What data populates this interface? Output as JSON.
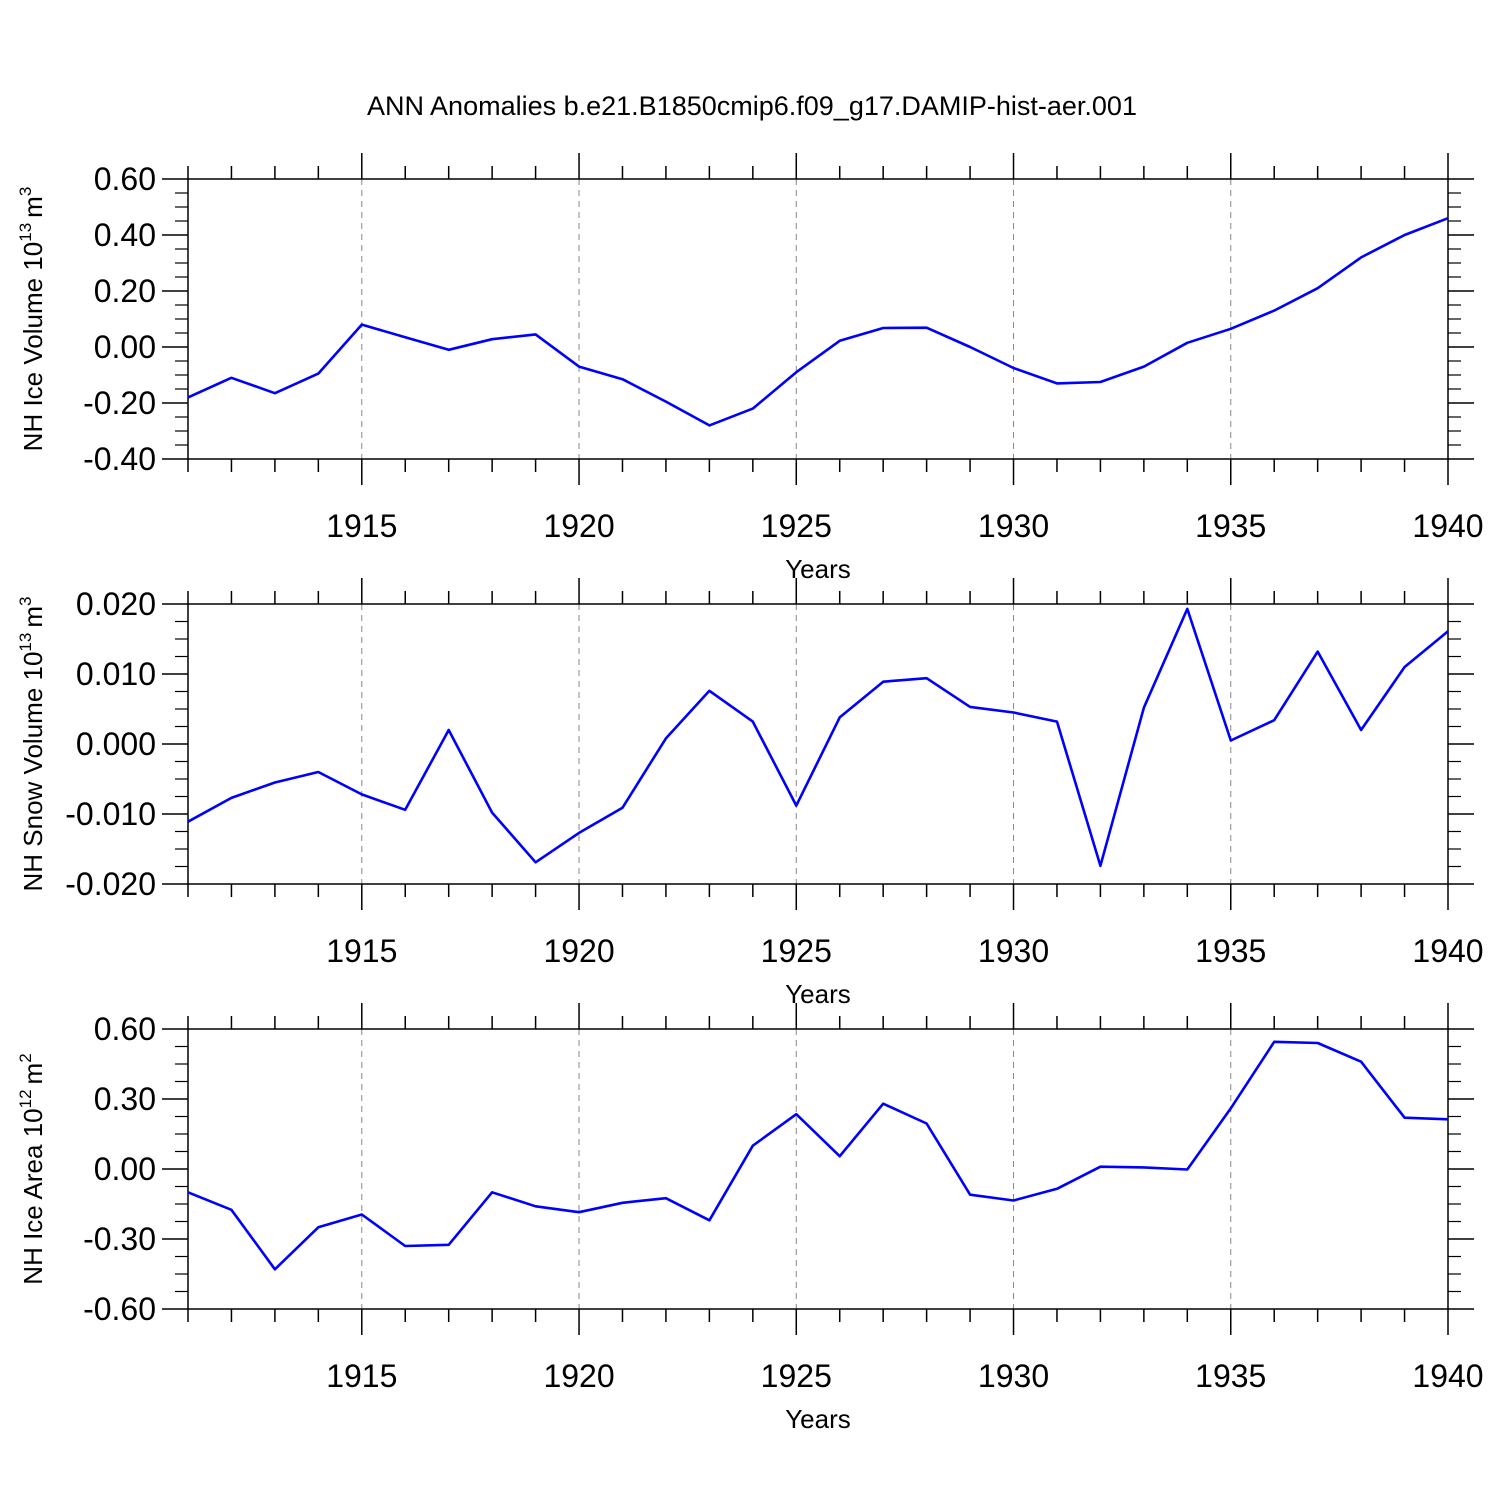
{
  "chart_data": [
    {
      "type": "line",
      "title": "ANN Anomalies b.e21.B1850cmip6.f09_g17.DAMIP-hist-aer.001",
      "xlabel": "Years",
      "ylabel": "NH Ice Volume 10",
      "ylabel_exp": "13",
      "ylabel_unit": "m",
      "ylabel_unit_exp": "3",
      "xlim": [
        1911,
        1940
      ],
      "ylim": [
        -0.4,
        0.6
      ],
      "yticks": [
        "-0.40",
        "-0.20",
        "0.00",
        "0.20",
        "0.40",
        "0.60"
      ],
      "xticks": [
        "1915",
        "1920",
        "1925",
        "1930",
        "1935",
        "1940"
      ],
      "grid": "vertical dashed at major x ticks",
      "color": "#0000ff",
      "x": [
        1911,
        1912,
        1913,
        1914,
        1915,
        1916,
        1917,
        1918,
        1919,
        1920,
        1921,
        1922,
        1923,
        1924,
        1925,
        1926,
        1927,
        1928,
        1929,
        1930,
        1931,
        1932,
        1933,
        1934,
        1935,
        1936,
        1937,
        1938,
        1939,
        1940
      ],
      "y": [
        -0.18,
        -0.11,
        -0.165,
        -0.095,
        0.08,
        0.035,
        -0.01,
        0.028,
        0.045,
        -0.07,
        -0.115,
        -0.195,
        -0.28,
        -0.22,
        -0.09,
        0.022,
        0.068,
        0.069,
        0.0,
        -0.075,
        -0.13,
        -0.125,
        -0.07,
        0.015,
        0.065,
        0.13,
        0.21,
        0.32,
        0.4,
        0.46
      ]
    },
    {
      "type": "line",
      "xlabel": "Years",
      "ylabel": "NH Snow Volume 10",
      "ylabel_exp": "13",
      "ylabel_unit": "m",
      "ylabel_unit_exp": "3",
      "xlim": [
        1911,
        1940
      ],
      "ylim": [
        -0.02,
        0.02
      ],
      "yticks": [
        "-0.020",
        "-0.010",
        "0.000",
        "0.010",
        "0.020"
      ],
      "xticks": [
        "1915",
        "1920",
        "1925",
        "1930",
        "1935",
        "1940"
      ],
      "grid": "vertical dashed at major x ticks",
      "color": "#0000ff",
      "x": [
        1911,
        1912,
        1913,
        1914,
        1915,
        1916,
        1917,
        1918,
        1919,
        1920,
        1921,
        1922,
        1923,
        1924,
        1925,
        1926,
        1927,
        1928,
        1929,
        1930,
        1931,
        1932,
        1933,
        1934,
        1935,
        1936,
        1937,
        1938,
        1939,
        1940
      ],
      "y": [
        -0.0111,
        -0.0077,
        -0.0055,
        -0.004,
        -0.0072,
        -0.0094,
        0.002,
        -0.0098,
        -0.0169,
        -0.0127,
        -0.0091,
        0.0008,
        0.0076,
        0.0032,
        -0.0088,
        0.0038,
        0.0089,
        0.0094,
        0.0053,
        0.0045,
        0.0032,
        -0.0174,
        0.0052,
        0.0193,
        0.0005,
        0.0034,
        0.0132,
        0.002,
        0.011,
        0.0161
      ]
    },
    {
      "type": "line",
      "xlabel": "Years",
      "ylabel": "NH Ice Area 10",
      "ylabel_exp": "12",
      "ylabel_unit": "m",
      "ylabel_unit_exp": "2",
      "xlim": [
        1911,
        1940
      ],
      "ylim": [
        -0.6,
        0.6
      ],
      "yticks": [
        "-0.60",
        "-0.30",
        "0.00",
        "0.30",
        "0.60"
      ],
      "xticks": [
        "1915",
        "1920",
        "1925",
        "1930",
        "1935",
        "1940"
      ],
      "grid": "vertical dashed at major x ticks",
      "color": "#0000ff",
      "x": [
        1911,
        1912,
        1913,
        1914,
        1915,
        1916,
        1917,
        1918,
        1919,
        1920,
        1921,
        1922,
        1923,
        1924,
        1925,
        1926,
        1927,
        1928,
        1929,
        1930,
        1931,
        1932,
        1933,
        1934,
        1935,
        1936,
        1937,
        1938,
        1939,
        1940
      ],
      "y": [
        -0.1,
        -0.175,
        -0.43,
        -0.25,
        -0.195,
        -0.33,
        -0.325,
        -0.1,
        -0.16,
        -0.185,
        -0.145,
        -0.125,
        -0.22,
        0.1,
        0.235,
        0.055,
        0.28,
        0.195,
        -0.11,
        -0.135,
        -0.085,
        0.01,
        0.007,
        -0.002,
        0.26,
        0.545,
        0.54,
        0.46,
        0.22,
        0.213
      ]
    }
  ]
}
